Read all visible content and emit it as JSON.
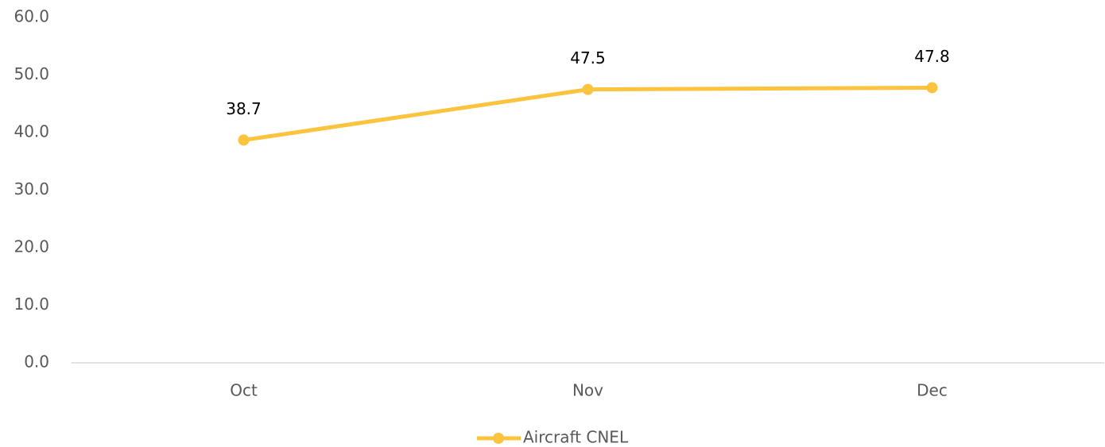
{
  "chart_data": {
    "type": "line",
    "categories": [
      "Oct",
      "Nov",
      "Dec"
    ],
    "series": [
      {
        "name": "Aircraft CNEL",
        "color": "#fbc33e",
        "values": [
          38.7,
          47.5,
          47.8
        ]
      }
    ],
    "ylim": [
      0,
      60
    ],
    "yticks": [
      {
        "value": 0,
        "label": "0.0"
      },
      {
        "value": 10,
        "label": "10.0"
      },
      {
        "value": 20,
        "label": "20.0"
      },
      {
        "value": 30,
        "label": "30.0"
      },
      {
        "value": 40,
        "label": "40.0"
      },
      {
        "value": 50,
        "label": "50.0"
      },
      {
        "value": 60,
        "label": "60.0"
      }
    ],
    "grid": false,
    "legend": "bottom"
  }
}
